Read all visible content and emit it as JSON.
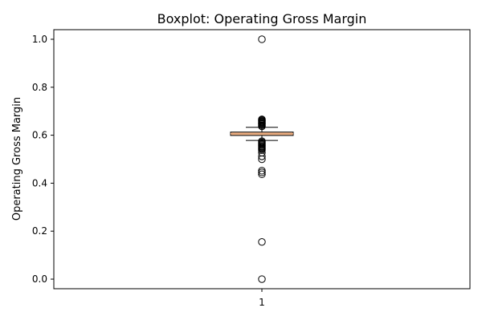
{
  "chart_data": {
    "type": "box",
    "title": "Boxplot:  Operating Gross Margin",
    "xlabel": "",
    "ylabel": "Operating Gross Margin",
    "ylim": [
      -0.04,
      1.04
    ],
    "y_ticks": [
      "0.0",
      "0.2",
      "0.4",
      "0.6",
      "0.8",
      "1.0"
    ],
    "x_ticks": [
      "1"
    ],
    "grid": false,
    "colors": {
      "box_fill": "#f0b88f",
      "median": "#e8a87a",
      "outline": "#000000"
    },
    "series": [
      {
        "category": "1",
        "whisker_low": 0.578,
        "q1": 0.599,
        "median": 0.606,
        "q3": 0.613,
        "whisker_high": 0.633,
        "outliers": [
          1.0,
          0.666,
          0.663,
          0.66,
          0.657,
          0.654,
          0.651,
          0.648,
          0.645,
          0.641,
          0.637,
          0.575,
          0.571,
          0.567,
          0.563,
          0.559,
          0.555,
          0.551,
          0.547,
          0.543,
          0.538,
          0.527,
          0.512,
          0.5,
          0.452,
          0.445,
          0.437,
          0.155,
          0.0
        ]
      }
    ]
  }
}
